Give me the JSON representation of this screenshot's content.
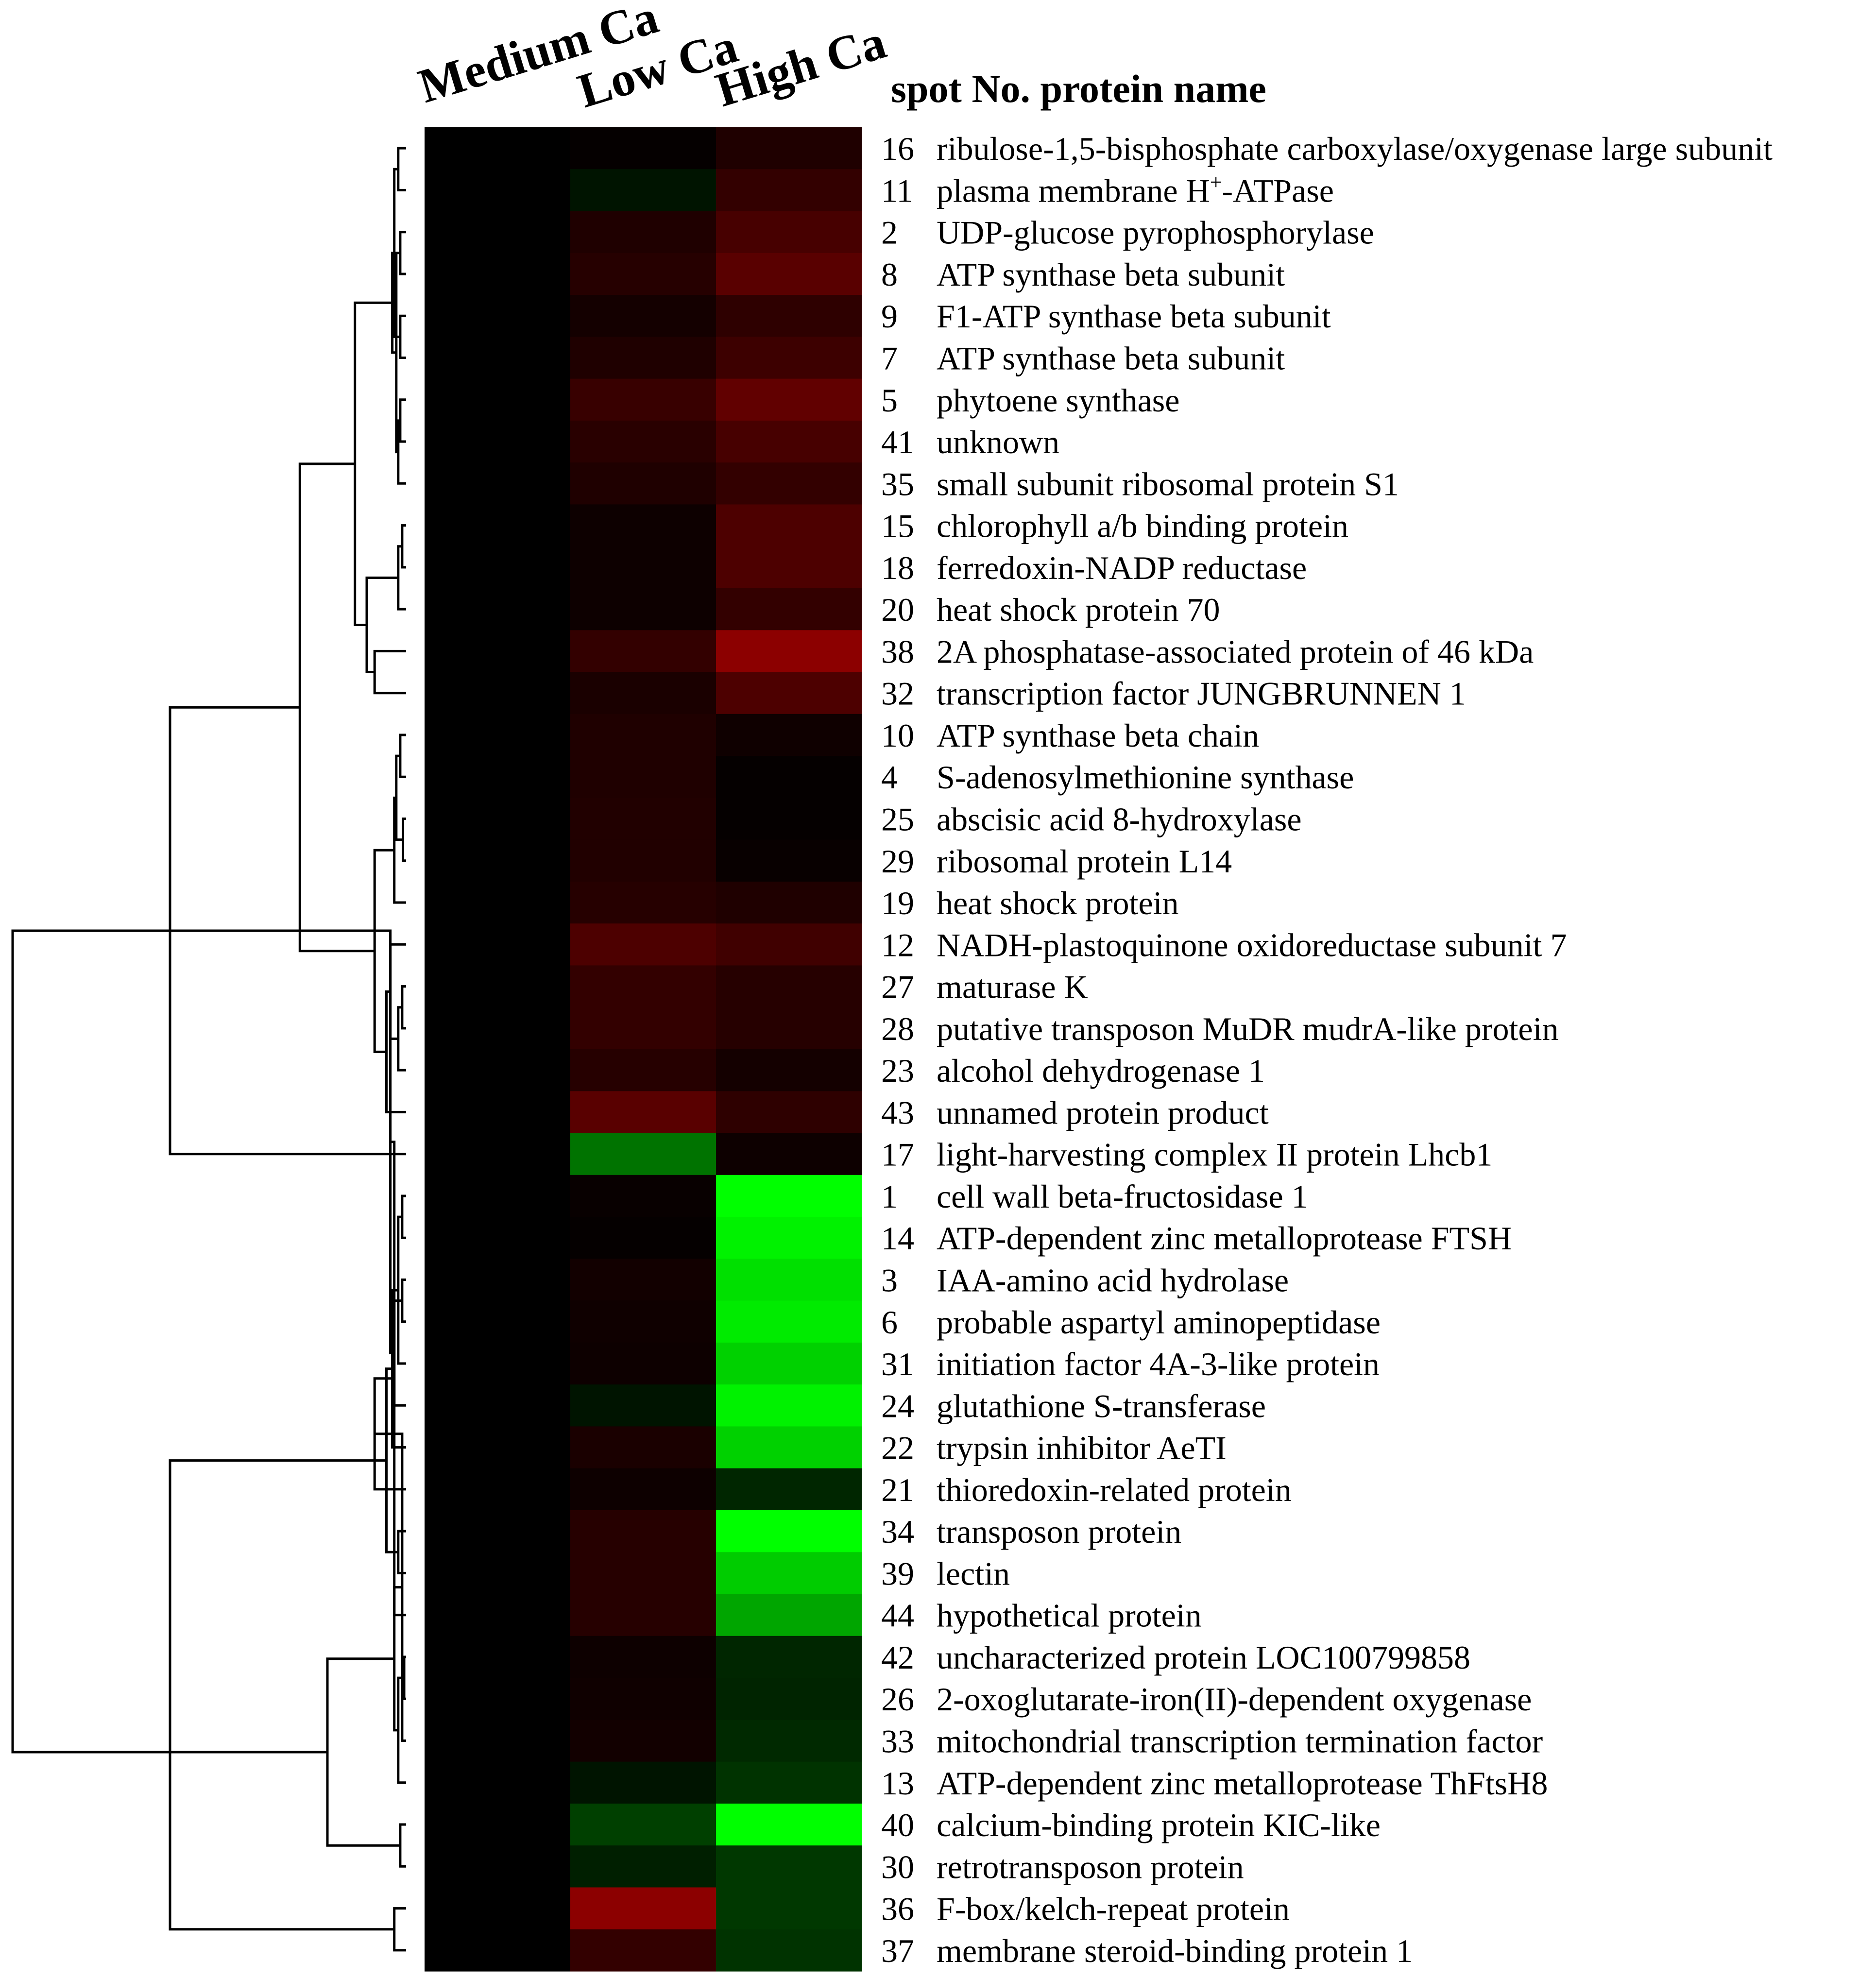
{
  "chart_data": {
    "type": "heatmap",
    "title": "",
    "header": "spot No. protein name",
    "columns": [
      "Medium Ca",
      "Low Ca",
      "High Ca"
    ],
    "color_scale": {
      "negative": "#00ff00",
      "zero": "#000000",
      "positive": "#ff0000"
    },
    "rows": [
      {
        "spot": "16",
        "name": "ribulose-1,5-bisphosphate carboxylase/oxygenase large subunit",
        "values": [
          0,
          0.02,
          0.12
        ]
      },
      {
        "spot": "11",
        "name": "plasma membrane H",
        "name_sup": "+",
        "name_suffix": "-ATPase",
        "values": [
          0,
          -0.08,
          0.2
        ]
      },
      {
        "spot": "2",
        "name": "UDP-glucose pyrophosphorylase",
        "values": [
          0,
          0.12,
          0.28
        ]
      },
      {
        "spot": "8",
        "name": "ATP synthase beta subunit",
        "values": [
          0,
          0.15,
          0.35
        ]
      },
      {
        "spot": "9",
        "name": "F1-ATP synthase beta subunit",
        "values": [
          0,
          0.08,
          0.18
        ]
      },
      {
        "spot": "7",
        "name": "ATP synthase beta subunit",
        "values": [
          0,
          0.12,
          0.24
        ]
      },
      {
        "spot": "5",
        "name": "phytoene synthase",
        "values": [
          0,
          0.22,
          0.38
        ]
      },
      {
        "spot": "41",
        "name": "unknown",
        "values": [
          0,
          0.16,
          0.28
        ]
      },
      {
        "spot": "35",
        "name": "small subunit ribosomal protein S1",
        "values": [
          0,
          0.12,
          0.2
        ]
      },
      {
        "spot": "15",
        "name": "chlorophyll a/b binding protein",
        "values": [
          0,
          0.05,
          0.3
        ]
      },
      {
        "spot": "18",
        "name": "ferredoxin-NADP reductase",
        "values": [
          0,
          0.05,
          0.3
        ]
      },
      {
        "spot": "20",
        "name": "heat shock protein 70",
        "values": [
          0,
          0.05,
          0.2
        ]
      },
      {
        "spot": "38",
        "name": "2A phosphatase-associated protein of 46 kDa",
        "values": [
          0,
          0.2,
          0.55
        ]
      },
      {
        "spot": "32",
        "name": "transcription factor JUNGBRUNNEN 1",
        "values": [
          0,
          0.1,
          0.3
        ]
      },
      {
        "spot": "10",
        "name": "ATP synthase beta chain",
        "values": [
          0,
          0.12,
          0.06
        ]
      },
      {
        "spot": "4",
        "name": "S-adenosylmethionine synthase",
        "values": [
          0,
          0.12,
          0.02
        ]
      },
      {
        "spot": "25",
        "name": "abscisic acid 8-hydroxylase",
        "values": [
          0,
          0.13,
          0.02
        ]
      },
      {
        "spot": "29",
        "name": "ribosomal protein L14",
        "values": [
          0,
          0.13,
          0.03
        ]
      },
      {
        "spot": "19",
        "name": "heat shock protein",
        "values": [
          0,
          0.15,
          0.12
        ]
      },
      {
        "spot": "12",
        "name": "NADH-plastoquinone oxidoreductase subunit 7",
        "values": [
          0,
          0.3,
          0.25
        ]
      },
      {
        "spot": "27",
        "name": "maturase K",
        "values": [
          0,
          0.2,
          0.15
        ]
      },
      {
        "spot": "28",
        "name": "putative transposon MuDR mudrA-like protein",
        "values": [
          0,
          0.2,
          0.15
        ]
      },
      {
        "spot": "23",
        "name": "alcohol dehydrogenase 1",
        "values": [
          0,
          0.15,
          0.08
        ]
      },
      {
        "spot": "43",
        "name": "unnamed protein product",
        "values": [
          0,
          0.35,
          0.18
        ]
      },
      {
        "spot": "17",
        "name": "light-harvesting complex II protein Lhcb1",
        "values": [
          0,
          -0.45,
          0.05
        ]
      },
      {
        "spot": "1",
        "name": "cell wall beta-fructosidase 1",
        "values": [
          0,
          0.03,
          -1.0
        ]
      },
      {
        "spot": "14",
        "name": "ATP-dependent zinc metalloprotease FTSH",
        "values": [
          0,
          0.02,
          -0.95
        ]
      },
      {
        "spot": "3",
        "name": "IAA-amino acid hydrolase",
        "values": [
          0,
          0.07,
          -0.88
        ]
      },
      {
        "spot": "6",
        "name": "probable aspartyl aminopeptidase",
        "values": [
          0,
          0.06,
          -0.92
        ]
      },
      {
        "spot": "31",
        "name": "initiation factor 4A-3-like protein",
        "values": [
          0,
          0.05,
          -0.82
        ]
      },
      {
        "spot": "24",
        "name": "glutathione S-transferase",
        "values": [
          0,
          -0.08,
          -0.95
        ]
      },
      {
        "spot": "22",
        "name": "trypsin inhibitor AeTI",
        "values": [
          0,
          0.1,
          -0.82
        ]
      },
      {
        "spot": "21",
        "name": "thioredoxin-related protein",
        "values": [
          0,
          0.05,
          -0.15
        ]
      },
      {
        "spot": "34",
        "name": "transposon protein",
        "values": [
          0,
          0.15,
          -1.0
        ]
      },
      {
        "spot": "39",
        "name": "lectin",
        "values": [
          0,
          0.15,
          -0.8
        ]
      },
      {
        "spot": "44",
        "name": "hypothetical protein",
        "values": [
          0,
          0.15,
          -0.65
        ]
      },
      {
        "spot": "42",
        "name": "uncharacterized protein LOC100799858",
        "values": [
          0,
          0.05,
          -0.15
        ]
      },
      {
        "spot": "26",
        "name": "2-oxoglutarate-iron(II)-dependent oxygenase",
        "values": [
          0,
          0.06,
          -0.14
        ]
      },
      {
        "spot": "33",
        "name": "mitochondrial transcription termination factor",
        "values": [
          0,
          0.07,
          -0.16
        ]
      },
      {
        "spot": "13",
        "name": "ATP-dependent zinc metalloprotease ThFtsH8",
        "values": [
          0,
          -0.08,
          -0.2
        ]
      },
      {
        "spot": "40",
        "name": "calcium-binding protein KIC-like",
        "values": [
          0,
          -0.25,
          -1.0
        ]
      },
      {
        "spot": "30",
        "name": "retrotransposon protein",
        "values": [
          0,
          -0.12,
          -0.22
        ]
      },
      {
        "spot": "36",
        "name": "F-box/kelch-repeat protein",
        "values": [
          0,
          0.55,
          -0.22
        ]
      },
      {
        "spot": "37",
        "name": "membrane steroid-binding protein 1",
        "values": [
          0,
          0.2,
          -0.2
        ]
      }
    ],
    "dendrogram": [
      {
        "a": 0,
        "b": 1,
        "h": 0.02
      },
      {
        "a": 2,
        "b": 3,
        "h": 0.015
      },
      {
        "a": 4,
        "b": 5,
        "h": 0.015
      },
      {
        "a": 44,
        "b": 46,
        "h": 0.03
      },
      {
        "a": 6,
        "b": 7,
        "h": 0.015
      },
      {
        "a": 48,
        "b": 8,
        "h": 0.02
      },
      {
        "a": 47,
        "b": 49,
        "h": 0.025
      },
      {
        "a": 45,
        "b": 50,
        "h": 0.035
      },
      {
        "a": 9,
        "b": 10,
        "h": 0.01
      },
      {
        "a": 52,
        "b": 11,
        "h": 0.02
      },
      {
        "a": 12,
        "b": 13,
        "h": 0.08
      },
      {
        "a": 53,
        "b": 54,
        "h": 0.1
      },
      {
        "a": 51,
        "b": 55,
        "h": 0.13
      },
      {
        "a": 14,
        "b": 15,
        "h": 0.015
      },
      {
        "a": 16,
        "b": 17,
        "h": 0.008
      },
      {
        "a": 57,
        "b": 58,
        "h": 0.025
      },
      {
        "a": 59,
        "b": 18,
        "h": 0.03
      },
      {
        "a": 20,
        "b": 21,
        "h": 0.01
      },
      {
        "a": 61,
        "b": 22,
        "h": 0.02
      },
      {
        "a": 19,
        "b": 62,
        "h": 0.04
      },
      {
        "a": 63,
        "b": 23,
        "h": 0.05
      },
      {
        "a": 60,
        "b": 64,
        "h": 0.08
      },
      {
        "a": 56,
        "b": 65,
        "h": 0.27
      },
      {
        "a": 66,
        "b": 24,
        "h": 0.6
      },
      {
        "a": 25,
        "b": 26,
        "h": 0.01
      },
      {
        "a": 27,
        "b": 28,
        "h": 0.01
      },
      {
        "a": 68,
        "b": 29,
        "h": 0.02
      },
      {
        "a": 69,
        "b": 30,
        "h": 0.03
      },
      {
        "a": 70,
        "b": 31,
        "h": 0.035
      },
      {
        "a": 67,
        "b": 71,
        "h": 0.04
      },
      {
        "a": 33,
        "b": 34,
        "h": 0.02
      },
      {
        "a": 73,
        "b": 35,
        "h": 0.03
      },
      {
        "a": 72,
        "b": 74,
        "h": 0.05
      },
      {
        "a": 75,
        "b": 32,
        "h": 0.08
      },
      {
        "a": 36,
        "b": 37,
        "h": 0.005
      },
      {
        "a": 77,
        "b": 38,
        "h": 0.01
      },
      {
        "a": 78,
        "b": 39,
        "h": 0.02
      },
      {
        "a": 40,
        "b": 41,
        "h": 0.015
      },
      {
        "a": 79,
        "b": 80,
        "h": 0.03
      },
      {
        "a": 42,
        "b": 43,
        "h": 0.03
      },
      {
        "a": 81,
        "b": 82,
        "h": 0.2
      },
      {
        "a": 76,
        "b": 83,
        "h": 0.6
      },
      {
        "a": 67,
        "b": 84,
        "h": 1.0
      }
    ]
  }
}
